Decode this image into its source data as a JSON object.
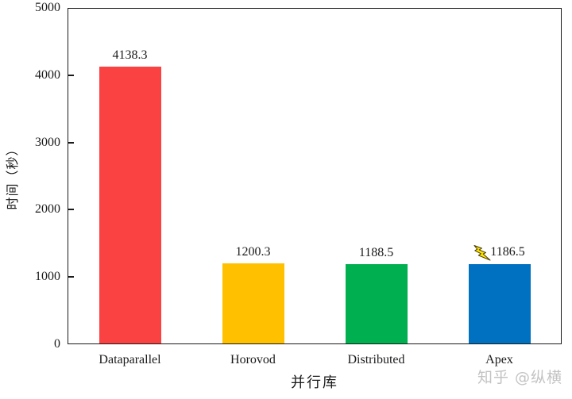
{
  "chart_data": {
    "type": "bar",
    "title": "",
    "xlabel": "并行库",
    "ylabel": "时间（秒）",
    "categories": [
      "Dataparallel",
      "Horovod",
      "Distributed",
      "Apex"
    ],
    "values": [
      4138.3,
      1200.3,
      1188.5,
      1186.5
    ],
    "value_labels": [
      "4138.3",
      "1200.3",
      "1188.5",
      "1186.5"
    ],
    "bar_colors": [
      "#FB4243",
      "#FFC000",
      "#00AF50",
      "#0070C0"
    ],
    "ylim": [
      0,
      5000
    ],
    "yticks": [
      0,
      1000,
      2000,
      3000,
      4000,
      5000
    ],
    "grid": false,
    "legend_position": "none",
    "annotations": [
      {
        "category": "Apex",
        "icon": "lightning-icon",
        "icon_color": "#FFE400",
        "icon_outline": "#4a3b00"
      }
    ]
  },
  "watermark": {
    "text": "知乎 @纵横"
  },
  "frame": {
    "background": "#ffffff",
    "axis_color": "#1a1a1a"
  }
}
